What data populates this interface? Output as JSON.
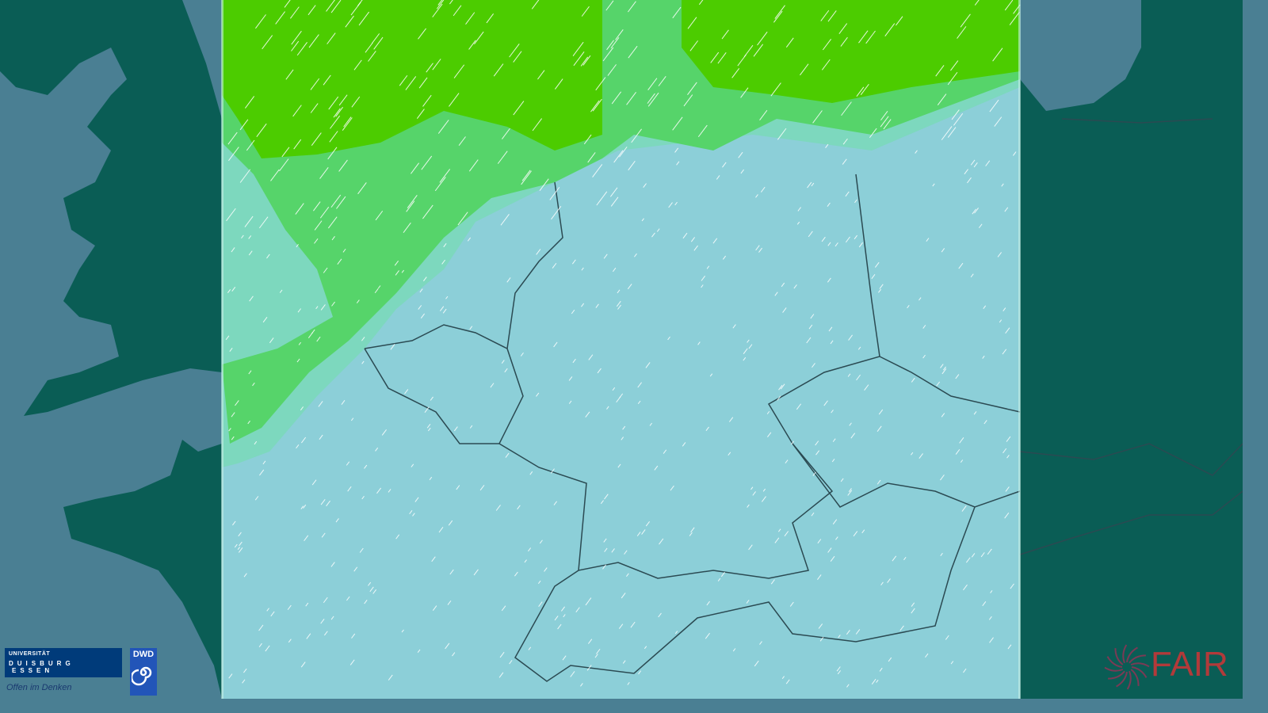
{
  "map": {
    "region": "Central Europe",
    "layer": "wind / precipitation forecast overlay",
    "colors": {
      "sea": "#4a7f93",
      "land_outside": "#0a5d55",
      "domain_base": "#8ccfd8",
      "domain_low": "#79d9b8",
      "domain_mid": "#56d46a",
      "domain_high": "#4ccc00",
      "borders": "#2b4a52",
      "wind_barbs": "#ffffff"
    }
  },
  "logos": {
    "ude": {
      "line1": "UNIVERSITÄT",
      "line2": "DUISBURG",
      "line3": "ESSEN",
      "slogan": "Offen im Denken"
    },
    "dwd": {
      "label": "DWD"
    },
    "fair": {
      "label": "FAIR"
    }
  }
}
